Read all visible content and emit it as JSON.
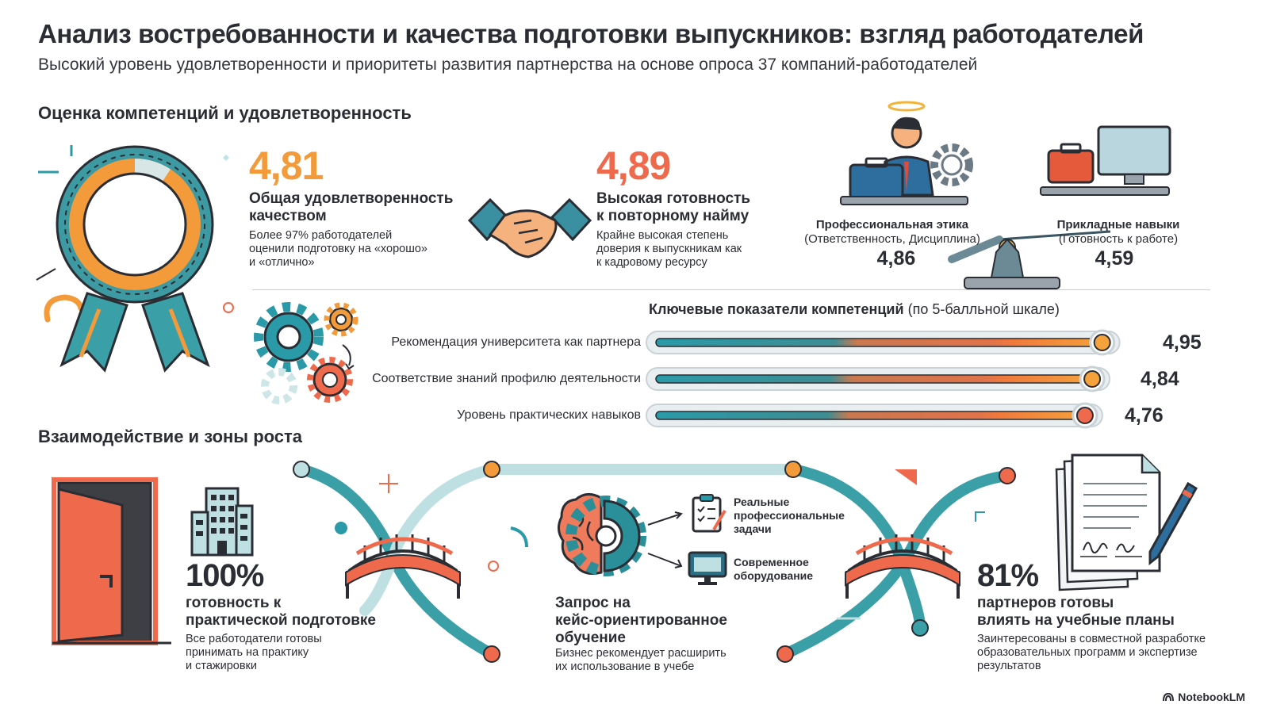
{
  "header": {
    "title": "Анализ востребованности и качества подготовки выпускников: взгляд работодателей",
    "subtitle": "Высокий уровень удовлетворенности и приоритеты развития партнерства на основе опроса 37 компаний-работодателей"
  },
  "section1": {
    "title": "Оценка компетенций и удовлетворенность",
    "satisfaction": {
      "value": "4,81",
      "heading": "Общая удовлетворенность качеством",
      "desc1": "Более 97% работодателей",
      "desc2": "оценили подготовку на «хорошо»",
      "desc3": "и «отлично»"
    },
    "rehire": {
      "value": "4,89",
      "heading1": "Высокая готовность",
      "heading2": "к повторному найму",
      "desc1": "Крайне высокая степень",
      "desc2": "доверия к выпускникам как",
      "desc3": "к кадровому ресурсу"
    },
    "ethics": {
      "label": "Профессиональная этика",
      "sub": "(Ответственность, Дисциплина)",
      "value": "4,86"
    },
    "applied": {
      "label": "Прикладные навыки",
      "sub": "(Готовность к работе)",
      "value": "4,59"
    }
  },
  "competencies": {
    "title_bold": "Ключевые показатели компетенций",
    "title_normal": "(по 5-балльной шкале)",
    "colors": {
      "start": "#2b9aa8",
      "mid": "#e07a5c",
      "end": "#f5a13c"
    },
    "bars": [
      {
        "label": "Рекомендация университета как партнера",
        "value": 4.95,
        "display": "4,95"
      },
      {
        "label": "Соответствие знаний профилю деятельности",
        "value": 4.84,
        "display": "4,84"
      },
      {
        "label": "Уровень практических навыков",
        "value": 4.76,
        "display": "4,76"
      }
    ]
  },
  "section2": {
    "title": "Взаимодействие и зоны роста",
    "practice": {
      "value": "100%",
      "heading1": "готовность к",
      "heading2": "практической подготовке",
      "desc1": "Все работодатели готовы",
      "desc2": "принимать на практику",
      "desc3": "и стажировки"
    },
    "cases": {
      "heading1": "Запрос на",
      "heading2": "кейс-ориентированное",
      "heading3": "обучение",
      "desc1": "Бизнес рекомендует расширить",
      "desc2": "их использование в учебе",
      "item1_1": "Реальные",
      "item1_2": "профессиональные",
      "item1_3": "задачи",
      "item2_1": "Современное",
      "item2_2": "оборудование"
    },
    "curriculum": {
      "value": "81%",
      "heading1": "партнеров готовы",
      "heading2": "влиять на учебные планы",
      "desc1": "Заинтересованы в совместной разработке",
      "desc2": "образовательных программ и экспертизе",
      "desc3": "результатов"
    }
  },
  "footer": {
    "brand": "NotebookLM"
  }
}
